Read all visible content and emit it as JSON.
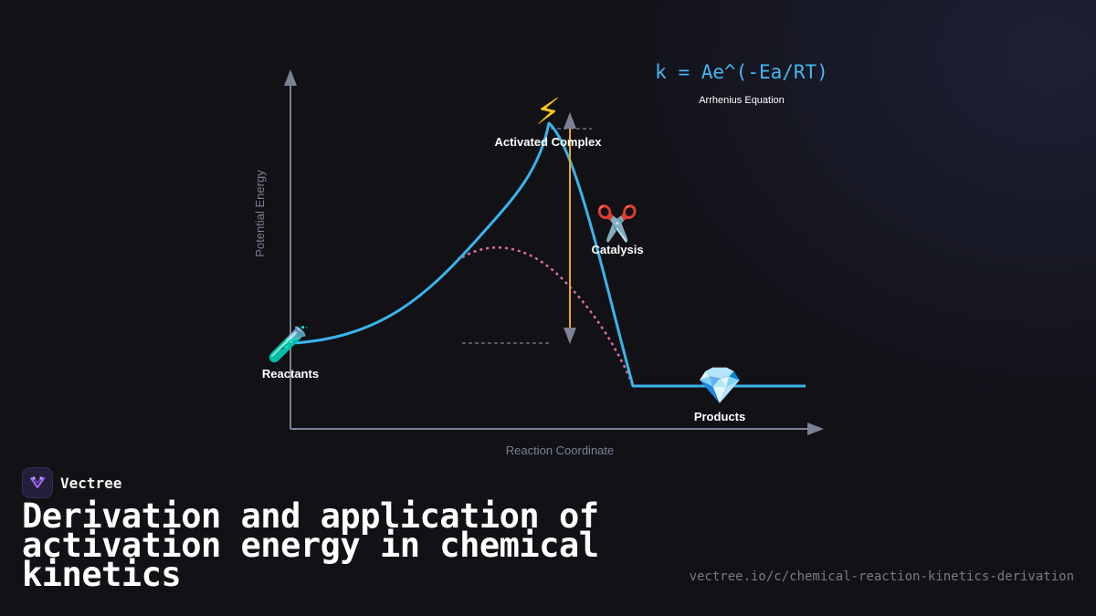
{
  "diagram": {
    "axis_x_label": "Reaction Coordinate",
    "axis_y_label": "Potential Energy",
    "formula": "k = Ae^(-Ea/RT)",
    "formula_caption": "Arrhenius Equation",
    "labels": {
      "reactants": "Reactants",
      "activated_complex": "Activated Complex",
      "catalysis": "Catalysis",
      "products": "Products"
    },
    "icons": {
      "reactants": "🧪",
      "activated_complex": "⚡",
      "catalysis": "✂️",
      "products": "💎"
    },
    "colors": {
      "uncatalyzed_curve": "#3ab4ec",
      "catalyzed_curve": "#e06aa8",
      "activation_arrow": "#f0a91e",
      "axes": "#7a8294",
      "formula": "#46b6f2"
    }
  },
  "brand": {
    "name": "Vectree"
  },
  "title": "Derivation and application of activation energy in chemical kinetics",
  "url": "vectree.io/c/chemical-reaction-kinetics-derivation"
}
